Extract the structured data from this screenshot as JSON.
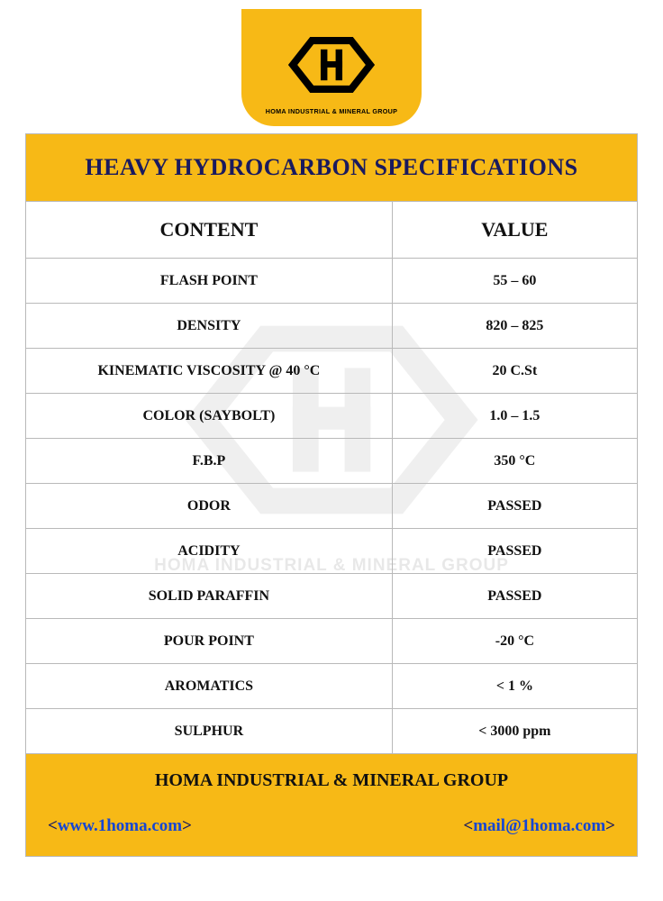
{
  "brand": {
    "company_name": "HOMA INDUSTRIAL & MINERAL GROUP",
    "logo_bg": "#f7b916",
    "logo_fg": "#000000"
  },
  "watermark": {
    "text": "HOMA INDUSTRIAL & MINERAL GROUP",
    "color": "#888888"
  },
  "sheet": {
    "title": "HEAVY HYDROCARBON SPECIFICATIONS",
    "title_color": "#1a1a5e",
    "header_content": "CONTENT",
    "header_value": "VALUE",
    "border_color": "#b9b9b9",
    "text_color": "#111111",
    "rows": [
      {
        "content": "FLASH POINT",
        "value": "55 – 60"
      },
      {
        "content": "DENSITY",
        "value": "820 – 825"
      },
      {
        "content": "KINEMATIC VISCOSITY @ 40 °C",
        "value": "20 C.St"
      },
      {
        "content": "COLOR (SAYBOLT)",
        "value": "1.0 – 1.5"
      },
      {
        "content": "F.B.P",
        "value": "350 °C"
      },
      {
        "content": "ODOR",
        "value": "PASSED"
      },
      {
        "content": "ACIDITY",
        "value": "PASSED"
      },
      {
        "content": "SOLID PARAFFIN",
        "value": "PASSED"
      },
      {
        "content": "POUR POINT",
        "value": "-20 °C"
      },
      {
        "content": "AROMATICS",
        "value": "< 1 %"
      },
      {
        "content": "SULPHUR",
        "value": "< 3000 ppm"
      }
    ]
  },
  "footer": {
    "company": "HOMA INDUSTRIAL & MINERAL GROUP",
    "website": "www.1homa.com",
    "email": "mail@1homa.com",
    "bracket_color": "#1a1a5e",
    "link_color": "#1546d4"
  }
}
